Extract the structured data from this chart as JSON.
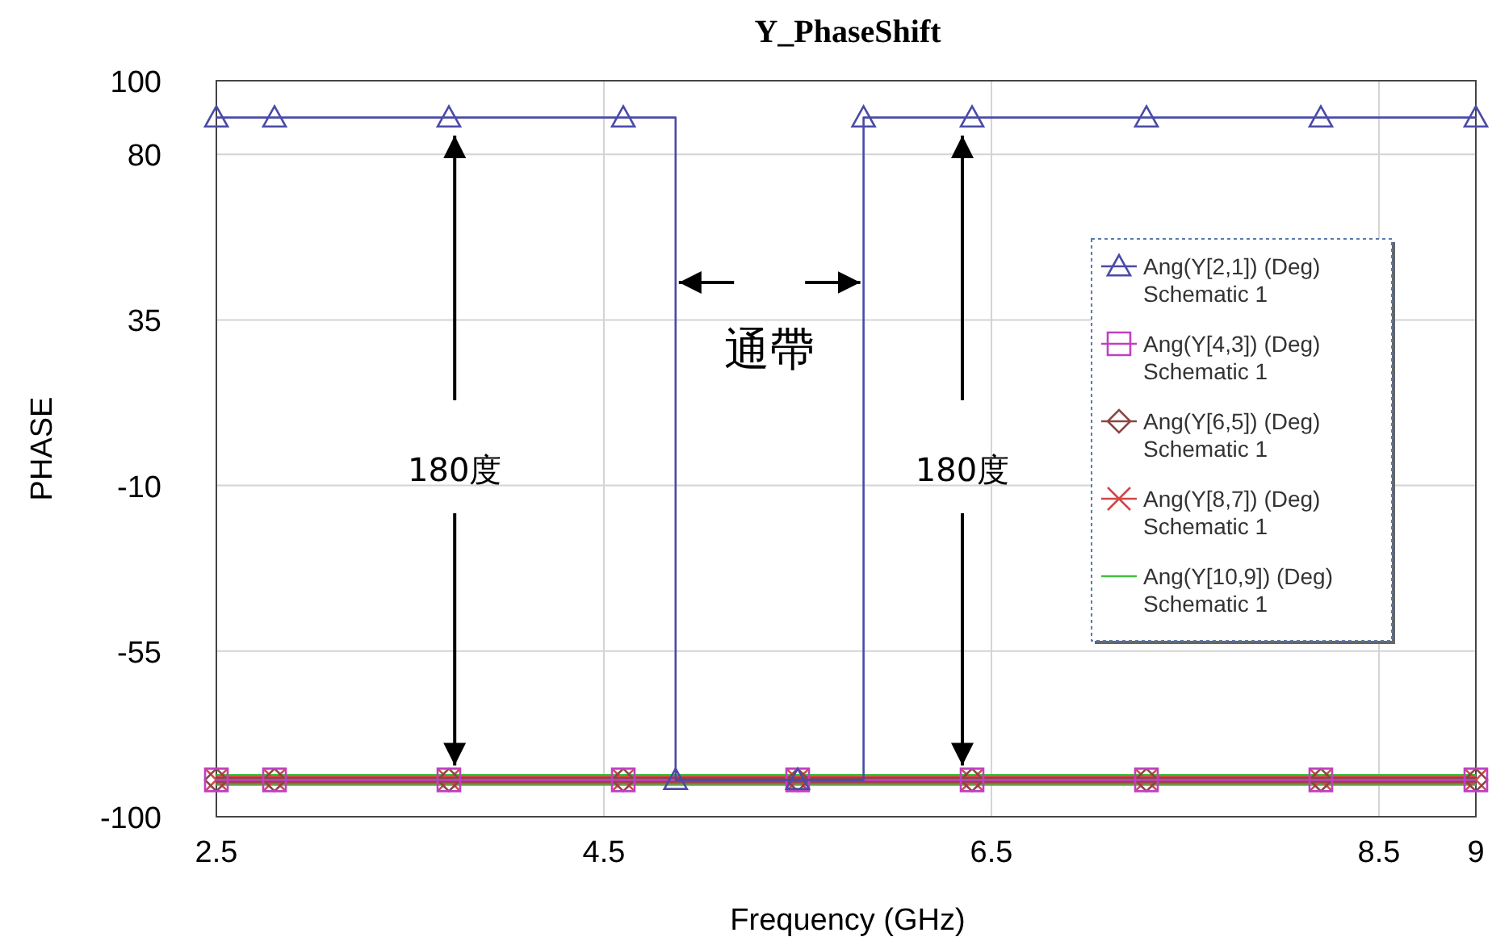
{
  "chart_data": {
    "type": "step",
    "title": "Y_PhaseShift",
    "xlabel": "Frequency (GHz)",
    "ylabel": "PHASE",
    "xlim": [
      2.5,
      9
    ],
    "xticks": [
      2.5,
      4.5,
      6.5,
      8.5,
      9
    ],
    "ylim": [
      -100,
      100
    ],
    "yticks": [
      -100,
      -55,
      -10,
      35,
      80,
      100
    ],
    "grid": true,
    "legend": "right",
    "series": [
      {
        "name": "Ang(Y[2,1]) (Deg) Schematic 1",
        "color": "#4a4aa8",
        "marker": "triangle",
        "x": [
          2.5,
          2.8,
          3.7,
          4.6,
          4.87,
          5.5,
          5.84,
          6.4,
          7.3,
          8.2,
          9
        ],
        "values": [
          90,
          90,
          90,
          90,
          -90,
          -90,
          90,
          90,
          90,
          90,
          90
        ]
      },
      {
        "name": "Ang(Y[4,3]) (Deg) Schematic 1",
        "color": "#c040c0",
        "marker": "square",
        "x": [
          2.5,
          2.8,
          3.7,
          4.6,
          5.5,
          6.4,
          7.3,
          8.2,
          9
        ],
        "values": [
          -90,
          -90,
          -90,
          -90,
          -90,
          -90,
          -90,
          -90,
          -90
        ]
      },
      {
        "name": "Ang(Y[6,5]) (Deg) Schematic 1",
        "color": "#8b4545",
        "marker": "diamond",
        "x": [
          2.5,
          2.8,
          3.7,
          4.6,
          5.5,
          6.4,
          7.3,
          8.2,
          9
        ],
        "values": [
          -90,
          -90,
          -90,
          -90,
          -90,
          -90,
          -90,
          -90,
          -90
        ]
      },
      {
        "name": "Ang(Y[8,7]) (Deg) Schematic 1",
        "color": "#d04848",
        "marker": "cross",
        "x": [
          2.5,
          2.8,
          3.7,
          4.6,
          5.5,
          6.4,
          7.3,
          8.2,
          9
        ],
        "values": [
          -90,
          -90,
          -90,
          -90,
          -90,
          -90,
          -90,
          -90,
          -90
        ]
      },
      {
        "name": "Ang(Y[10,9]) (Deg) Schematic 1",
        "color": "#40c040",
        "marker": "none",
        "x": [
          2.5,
          9
        ],
        "values": [
          -90,
          -90
        ]
      }
    ],
    "annotations": [
      {
        "text": "180度",
        "x": 3.73,
        "y": -90
      },
      {
        "text": "180度",
        "x": 6.35,
        "y": -90
      },
      "通帶"
    ]
  }
}
